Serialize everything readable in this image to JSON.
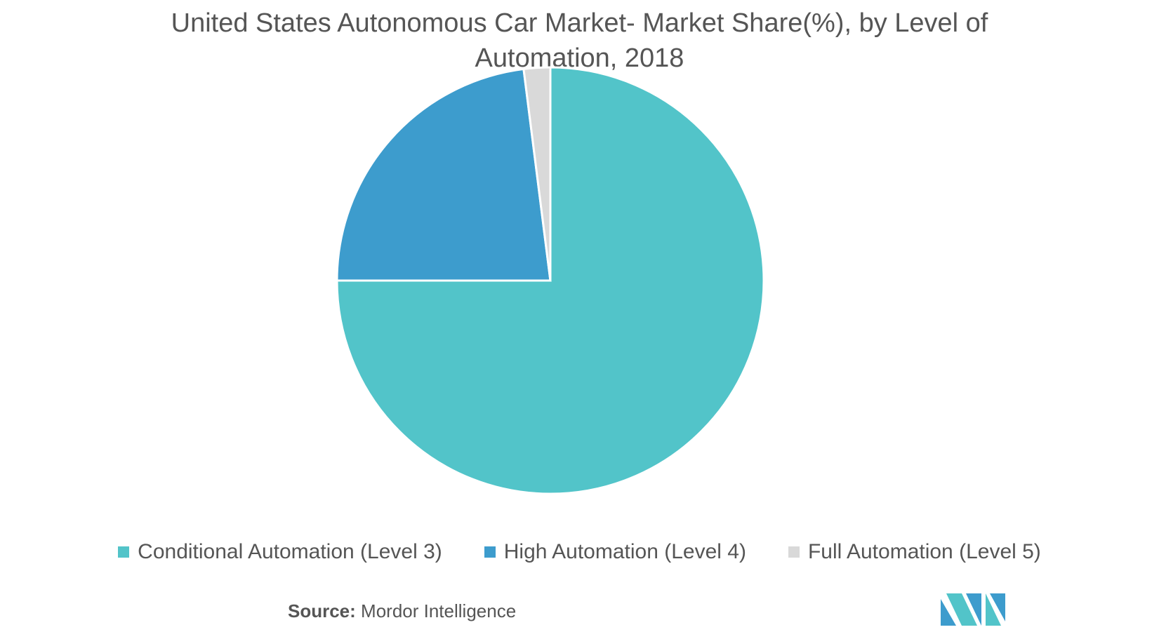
{
  "title_line1": "United States Autonomous Car Market- Market Share(%), by Level of",
  "title_line2": "Automation, 2018",
  "chart_data": {
    "type": "pie",
    "title": "United States Autonomous Car Market- Market Share(%), by Level of Automation, 2018",
    "categories": [
      "Conditional Automation (Level 3)",
      "High Automation (Level 4)",
      "Full Automation (Level 5)"
    ],
    "values": [
      75,
      23,
      2
    ],
    "colors": [
      "#52c4c9",
      "#3d9ccd",
      "#d9d9d9"
    ],
    "legend_position": "bottom"
  },
  "source_label": "Source:",
  "source_value": "Mordor Intelligence",
  "logo_icon": "mordor-intelligence-logo-icon"
}
